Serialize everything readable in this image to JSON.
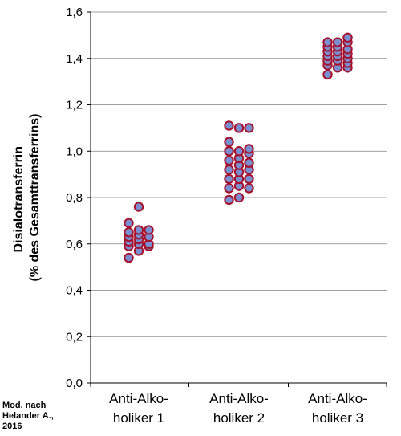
{
  "chart_data": {
    "type": "scatter",
    "title": "",
    "ylabel": [
      "Disialotransferrin",
      "(% des Gesamttransferrins)"
    ],
    "ylim": [
      0,
      1.6
    ],
    "yticks": [
      "0,0",
      "0,2",
      "0,4",
      "0,6",
      "0,8",
      "1,0",
      "1,2",
      "1,4",
      "1,6"
    ],
    "categories": [
      [
        "Anti-Alko-",
        "holiker 1"
      ],
      [
        "Anti-Alko-",
        "holiker 2"
      ],
      [
        "Anti-Alko-",
        "holiker 3"
      ]
    ],
    "grid": "horizontal",
    "source_note": [
      "Mod. nach",
      "Helander A.,",
      "2016"
    ],
    "series": [
      {
        "category_index": 0,
        "points": [
          [
            -1,
            0.54
          ],
          [
            -1,
            0.59
          ],
          [
            -1,
            0.61
          ],
          [
            -1,
            0.63
          ],
          [
            -1,
            0.65
          ],
          [
            -1,
            0.69
          ],
          [
            0,
            0.57
          ],
          [
            0,
            0.6
          ],
          [
            0,
            0.62
          ],
          [
            0,
            0.64
          ],
          [
            0,
            0.66
          ],
          [
            0,
            0.76
          ],
          [
            1,
            0.59
          ],
          [
            1,
            0.6
          ],
          [
            1,
            0.63
          ],
          [
            1,
            0.66
          ]
        ]
      },
      {
        "category_index": 1,
        "points": [
          [
            -1,
            0.79
          ],
          [
            -1,
            0.84
          ],
          [
            -1,
            0.88
          ],
          [
            -1,
            0.92
          ],
          [
            -1,
            0.96
          ],
          [
            -1,
            1.0
          ],
          [
            -1,
            1.04
          ],
          [
            -1,
            1.11
          ],
          [
            0,
            0.8
          ],
          [
            0,
            0.85
          ],
          [
            0,
            0.88
          ],
          [
            0,
            0.91
          ],
          [
            0,
            0.94
          ],
          [
            0,
            0.97
          ],
          [
            0,
            1.0
          ],
          [
            0,
            1.1
          ],
          [
            1,
            0.84
          ],
          [
            1,
            0.88
          ],
          [
            1,
            0.92
          ],
          [
            1,
            0.95
          ],
          [
            1,
            0.99
          ],
          [
            1,
            1.01
          ],
          [
            1,
            1.1
          ]
        ]
      },
      {
        "category_index": 2,
        "points": [
          [
            -1,
            1.33
          ],
          [
            -1,
            1.37
          ],
          [
            -1,
            1.39
          ],
          [
            -1,
            1.41
          ],
          [
            -1,
            1.43
          ],
          [
            -1,
            1.45
          ],
          [
            -1,
            1.47
          ],
          [
            0,
            1.36
          ],
          [
            0,
            1.39
          ],
          [
            0,
            1.41
          ],
          [
            0,
            1.43
          ],
          [
            0,
            1.45
          ],
          [
            0,
            1.47
          ],
          [
            1,
            1.36
          ],
          [
            1,
            1.38
          ],
          [
            1,
            1.4
          ],
          [
            1,
            1.42
          ],
          [
            1,
            1.44
          ],
          [
            1,
            1.47
          ],
          [
            1,
            1.49
          ]
        ]
      }
    ],
    "marker_fill": "#7a8fd0",
    "marker_stroke": "#a8102a",
    "gridline_color": "#808080"
  }
}
